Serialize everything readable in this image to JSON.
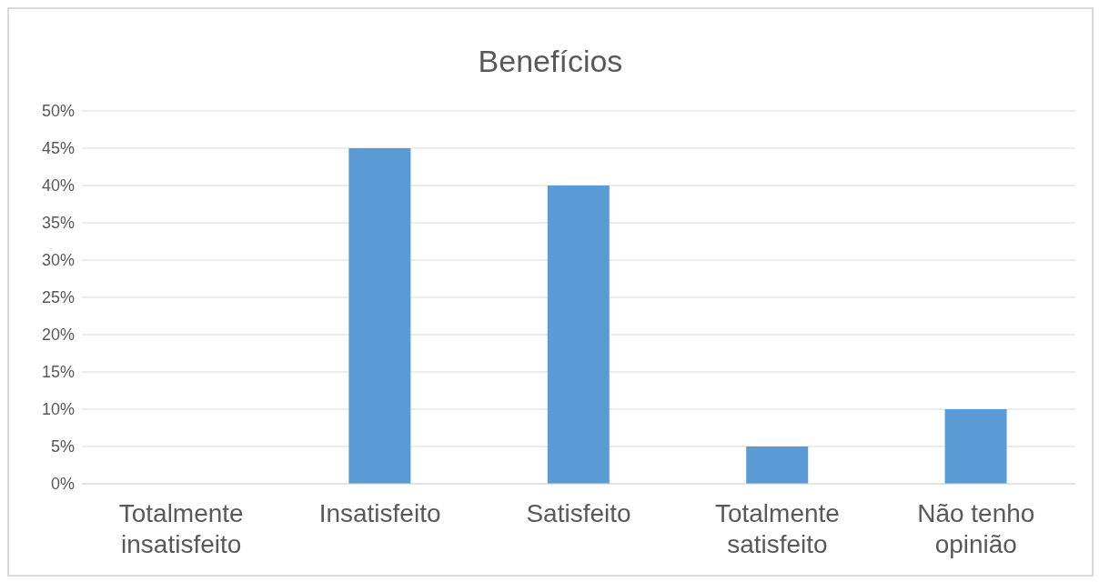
{
  "chart_data": {
    "type": "bar",
    "title": "Benefícios",
    "categories": [
      "Totalmente insatisfeito",
      "Insatisfeito",
      "Satisfeito",
      "Totalmente satisfeito",
      "Não tenho opinião"
    ],
    "values": [
      0,
      45,
      40,
      5,
      10
    ],
    "color": "#5b9bd5",
    "ylim": [
      0,
      50
    ],
    "yticks": [
      {
        "value": 0,
        "label": "0%"
      },
      {
        "value": 5,
        "label": "5%"
      },
      {
        "value": 10,
        "label": "10%"
      },
      {
        "value": 15,
        "label": "15%"
      },
      {
        "value": 20,
        "label": "20%"
      },
      {
        "value": 25,
        "label": "25%"
      },
      {
        "value": 30,
        "label": "30%"
      },
      {
        "value": 35,
        "label": "35%"
      },
      {
        "value": 40,
        "label": "40%"
      },
      {
        "value": 45,
        "label": "45%"
      },
      {
        "value": 50,
        "label": "50%"
      }
    ],
    "grid": "y"
  }
}
